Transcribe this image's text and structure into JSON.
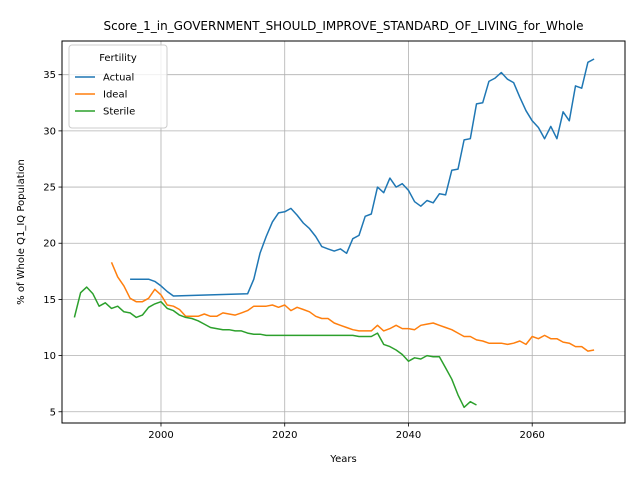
{
  "chart_data": {
    "type": "line",
    "title": "Score_1_in_GOVERNMENT_SHOULD_IMPROVE_STANDARD_OF_LIVING_for_Whole",
    "xlabel": "Years",
    "ylabel": "% of Whole Q1_IQ Population",
    "xlim": [
      1984,
      2075
    ],
    "ylim": [
      4,
      38
    ],
    "xticks": [
      2000,
      2020,
      2040,
      2060
    ],
    "yticks": [
      5,
      10,
      15,
      20,
      25,
      30,
      35
    ],
    "grid": true,
    "legend": {
      "title": "Fertility",
      "placement": "top-left"
    },
    "series": [
      {
        "name": "Actual",
        "color": "#1f77b4",
        "x": [
          1995,
          1996,
          1997,
          1998,
          1999,
          2000,
          2001,
          2002,
          2014,
          2015,
          2016,
          2017,
          2018,
          2019,
          2020,
          2021,
          2022,
          2023,
          2024,
          2025,
          2026,
          2027,
          2028,
          2029,
          2030,
          2031,
          2032,
          2033,
          2034,
          2035,
          2036,
          2037,
          2038,
          2039,
          2040,
          2041,
          2042,
          2043,
          2044,
          2045,
          2046,
          2047,
          2048,
          2049,
          2050,
          2051,
          2052,
          2053,
          2054,
          2055,
          2056,
          2057,
          2058,
          2059,
          2060,
          2061,
          2062,
          2063,
          2064,
          2065,
          2066,
          2067,
          2068,
          2069,
          2070
        ],
        "y": [
          16.8,
          16.8,
          16.8,
          16.8,
          16.6,
          16.2,
          15.7,
          15.3,
          15.5,
          16.8,
          19.1,
          20.6,
          21.9,
          22.7,
          22.8,
          23.1,
          22.5,
          21.8,
          21.3,
          20.6,
          19.7,
          19.5,
          19.3,
          19.5,
          19.1,
          20.4,
          20.7,
          22.4,
          22.6,
          25.0,
          24.5,
          25.8,
          25.0,
          25.3,
          24.7,
          23.7,
          23.3,
          23.8,
          23.6,
          24.4,
          24.3,
          26.5,
          26.6,
          29.2,
          29.3,
          32.4,
          32.5,
          34.4,
          34.7,
          35.2,
          34.6,
          34.3,
          33.0,
          31.8,
          30.9,
          30.3,
          29.3,
          30.4,
          29.3,
          31.7,
          30.9,
          34.0,
          33.8,
          36.1,
          36.4
        ]
      },
      {
        "name": "Ideal",
        "color": "#ff7f0e",
        "x": [
          1992,
          1993,
          1994,
          1995,
          1996,
          1997,
          1998,
          1999,
          2000,
          2001,
          2002,
          2003,
          2004,
          2005,
          2006,
          2007,
          2008,
          2009,
          2010,
          2011,
          2012,
          2013,
          2014,
          2015,
          2016,
          2017,
          2018,
          2019,
          2020,
          2021,
          2022,
          2023,
          2024,
          2025,
          2026,
          2027,
          2028,
          2029,
          2030,
          2031,
          2032,
          2033,
          2034,
          2035,
          2036,
          2037,
          2038,
          2039,
          2040,
          2041,
          2042,
          2043,
          2044,
          2045,
          2046,
          2047,
          2048,
          2049,
          2050,
          2051,
          2052,
          2053,
          2054,
          2055,
          2056,
          2057,
          2058,
          2059,
          2060,
          2061,
          2062,
          2063,
          2064,
          2065,
          2066,
          2067,
          2068,
          2069,
          2070
        ],
        "y": [
          18.3,
          17.0,
          16.2,
          15.1,
          14.8,
          14.8,
          15.1,
          15.9,
          15.4,
          14.5,
          14.4,
          14.1,
          13.5,
          13.5,
          13.5,
          13.7,
          13.5,
          13.5,
          13.8,
          13.7,
          13.6,
          13.8,
          14.0,
          14.4,
          14.4,
          14.4,
          14.5,
          14.3,
          14.5,
          14.0,
          14.3,
          14.1,
          13.9,
          13.5,
          13.3,
          13.3,
          12.9,
          12.7,
          12.5,
          12.3,
          12.2,
          12.2,
          12.2,
          12.7,
          12.2,
          12.4,
          12.7,
          12.4,
          12.4,
          12.3,
          12.7,
          12.8,
          12.9,
          12.7,
          12.5,
          12.3,
          12.0,
          11.7,
          11.7,
          11.4,
          11.3,
          11.1,
          11.1,
          11.1,
          11.0,
          11.1,
          11.3,
          11.0,
          11.7,
          11.5,
          11.8,
          11.5,
          11.5,
          11.2,
          11.1,
          10.8,
          10.8,
          10.4,
          10.5
        ]
      },
      {
        "name": "Sterile",
        "color": "#2ca02c",
        "x": [
          1986,
          1987,
          1988,
          1989,
          1990,
          1991,
          1992,
          1993,
          1994,
          1995,
          1996,
          1997,
          1998,
          1999,
          2000,
          2001,
          2002,
          2003,
          2004,
          2005,
          2006,
          2007,
          2008,
          2009,
          2010,
          2011,
          2012,
          2013,
          2014,
          2015,
          2016,
          2017,
          2018,
          2019,
          2020,
          2021,
          2022,
          2023,
          2024,
          2025,
          2026,
          2027,
          2028,
          2029,
          2030,
          2031,
          2032,
          2033,
          2034,
          2035,
          2036,
          2037,
          2038,
          2039,
          2040,
          2041,
          2042,
          2043,
          2044,
          2045,
          2046,
          2047,
          2048,
          2049,
          2050,
          2051
        ],
        "y": [
          13.4,
          15.6,
          16.1,
          15.5,
          14.4,
          14.7,
          14.2,
          14.4,
          13.9,
          13.8,
          13.4,
          13.6,
          14.3,
          14.6,
          14.8,
          14.2,
          14.0,
          13.6,
          13.4,
          13.3,
          13.1,
          12.8,
          12.5,
          12.4,
          12.3,
          12.3,
          12.2,
          12.2,
          12.0,
          11.9,
          11.9,
          11.8,
          11.8,
          11.8,
          11.8,
          11.8,
          11.8,
          11.8,
          11.8,
          11.8,
          11.8,
          11.8,
          11.8,
          11.8,
          11.8,
          11.8,
          11.7,
          11.7,
          11.7,
          12.0,
          11.0,
          10.8,
          10.5,
          10.1,
          9.5,
          9.8,
          9.7,
          10.0,
          9.9,
          9.9,
          8.9,
          7.9,
          6.5,
          5.4,
          5.9,
          5.6
        ]
      }
    ]
  }
}
